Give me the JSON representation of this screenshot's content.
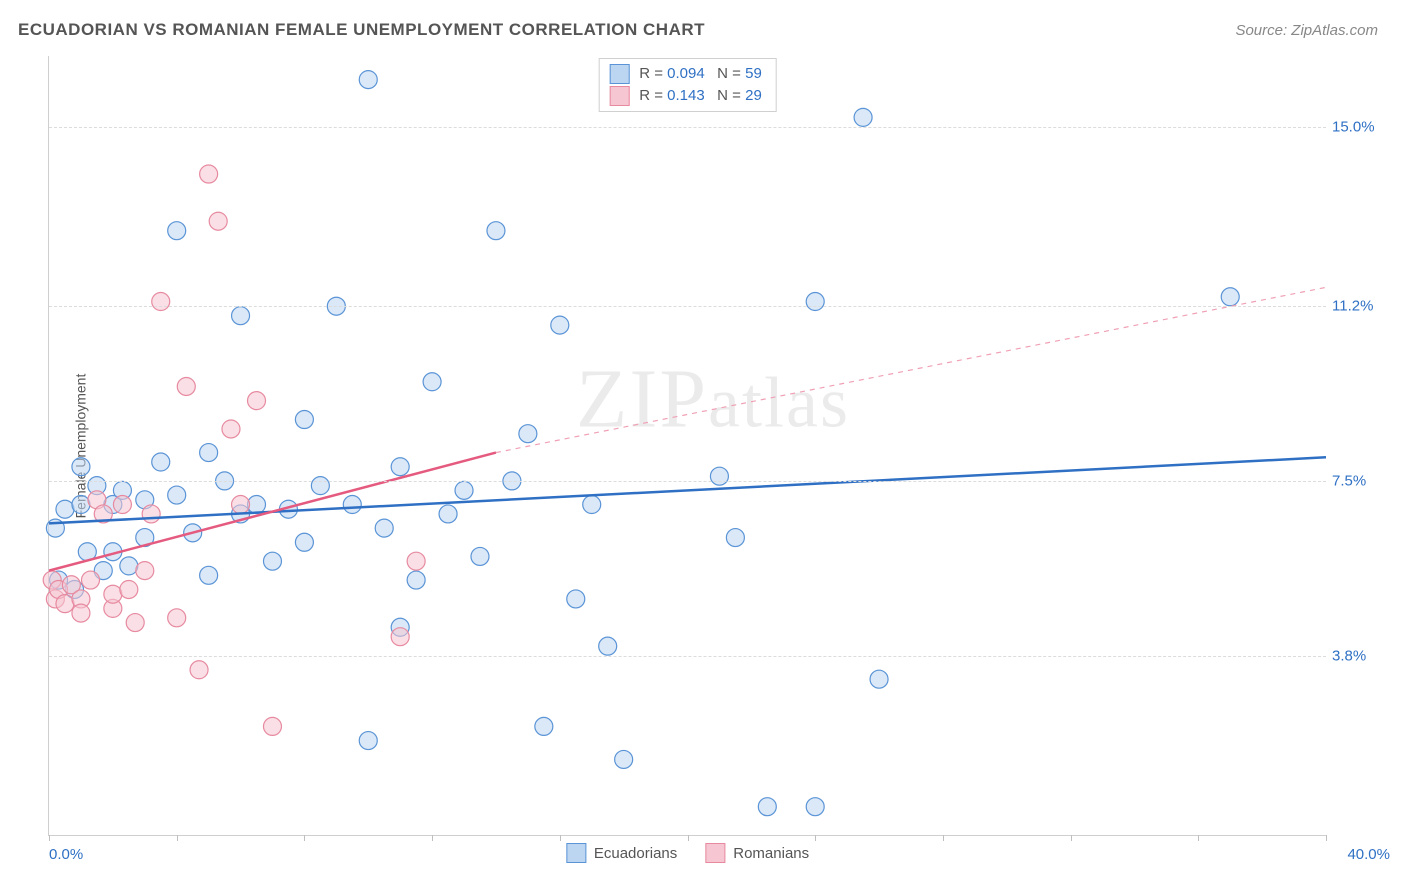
{
  "title": "ECUADORIAN VS ROMANIAN FEMALE UNEMPLOYMENT CORRELATION CHART",
  "source_label": "Source: ZipAtlas.com",
  "ylabel": "Female Unemployment",
  "watermark": "ZIPatlas",
  "chart": {
    "type": "scatter",
    "background_color": "#ffffff",
    "grid_color": "#dcdcdc",
    "axis_color": "#cfcfcf",
    "xlim": [
      0,
      40
    ],
    "ylim": [
      0,
      16.5
    ],
    "x_ticks": [
      0,
      4,
      8,
      12,
      16,
      20,
      24,
      28,
      32,
      36,
      40
    ],
    "x_tick_labels": {
      "left": "0.0%",
      "right": "40.0%",
      "color": "#2f70c4"
    },
    "y_gridlines": [
      {
        "value": 3.8,
        "label": "3.8%",
        "color": "#2f70c4"
      },
      {
        "value": 7.5,
        "label": "7.5%",
        "color": "#2f70c4"
      },
      {
        "value": 11.2,
        "label": "11.2%",
        "color": "#2f70c4"
      },
      {
        "value": 15.0,
        "label": "15.0%",
        "color": "#2f70c4"
      }
    ],
    "marker_radius": 9,
    "marker_opacity": 0.55,
    "marker_stroke_width": 1.2,
    "series": [
      {
        "id": "ecuadorians",
        "label": "Ecuadorians",
        "fill": "#bcd6f2",
        "stroke": "#5a94d6",
        "R": "0.094",
        "N": "59",
        "trend_color": "#2f70c4",
        "trend_width": 2.5,
        "trend_dash": "none",
        "trend": {
          "x1": 0,
          "y1": 6.6,
          "x2": 40,
          "y2": 8.0
        },
        "points": [
          [
            0.2,
            6.5
          ],
          [
            0.3,
            5.4
          ],
          [
            0.5,
            6.9
          ],
          [
            0.8,
            5.2
          ],
          [
            1.0,
            7.8
          ],
          [
            1.0,
            7.0
          ],
          [
            1.2,
            6.0
          ],
          [
            1.5,
            7.4
          ],
          [
            1.7,
            5.6
          ],
          [
            2.0,
            7.0
          ],
          [
            2.0,
            6.0
          ],
          [
            2.3,
            7.3
          ],
          [
            2.5,
            5.7
          ],
          [
            3.0,
            7.1
          ],
          [
            3.0,
            6.3
          ],
          [
            3.5,
            7.9
          ],
          [
            4.0,
            12.8
          ],
          [
            4.0,
            7.2
          ],
          [
            4.5,
            6.4
          ],
          [
            5.0,
            8.1
          ],
          [
            5.0,
            5.5
          ],
          [
            5.5,
            7.5
          ],
          [
            6.0,
            11.0
          ],
          [
            6.0,
            6.8
          ],
          [
            6.5,
            7.0
          ],
          [
            7.0,
            5.8
          ],
          [
            7.5,
            6.9
          ],
          [
            8.0,
            8.8
          ],
          [
            8.0,
            6.2
          ],
          [
            8.5,
            7.4
          ],
          [
            9.0,
            11.2
          ],
          [
            9.5,
            7.0
          ],
          [
            10.0,
            16.0
          ],
          [
            10.0,
            2.0
          ],
          [
            10.5,
            6.5
          ],
          [
            11.0,
            7.8
          ],
          [
            11.0,
            4.4
          ],
          [
            11.5,
            5.4
          ],
          [
            12.0,
            9.6
          ],
          [
            12.5,
            6.8
          ],
          [
            13.0,
            7.3
          ],
          [
            13.5,
            5.9
          ],
          [
            14.0,
            12.8
          ],
          [
            14.5,
            7.5
          ],
          [
            15.0,
            8.5
          ],
          [
            15.5,
            2.3
          ],
          [
            16.0,
            10.8
          ],
          [
            16.5,
            5.0
          ],
          [
            17.0,
            7.0
          ],
          [
            17.5,
            4.0
          ],
          [
            18.0,
            1.6
          ],
          [
            21.0,
            7.6
          ],
          [
            21.5,
            6.3
          ],
          [
            22.5,
            0.6
          ],
          [
            24.0,
            11.3
          ],
          [
            24.0,
            0.6
          ],
          [
            25.5,
            15.2
          ],
          [
            26.0,
            3.3
          ],
          [
            37.0,
            11.4
          ]
        ]
      },
      {
        "id": "romanians",
        "label": "Romanians",
        "fill": "#f6c7d2",
        "stroke": "#e78aa0",
        "R": "0.143",
        "N": "29",
        "trend_color": "#e55a7f",
        "trend_width": 2.5,
        "trend_dash": "none",
        "trend": {
          "x1": 0,
          "y1": 5.6,
          "x2": 14,
          "y2": 8.1
        },
        "trend_ext_color": "#f0a0b5",
        "trend_ext_dash": "5,5",
        "trend_ext": {
          "x1": 14,
          "y1": 8.1,
          "x2": 40,
          "y2": 11.6
        },
        "points": [
          [
            0.1,
            5.4
          ],
          [
            0.2,
            5.0
          ],
          [
            0.3,
            5.2
          ],
          [
            0.5,
            4.9
          ],
          [
            0.7,
            5.3
          ],
          [
            1.0,
            5.0
          ],
          [
            1.0,
            4.7
          ],
          [
            1.3,
            5.4
          ],
          [
            1.5,
            7.1
          ],
          [
            1.7,
            6.8
          ],
          [
            2.0,
            4.8
          ],
          [
            2.0,
            5.1
          ],
          [
            2.3,
            7.0
          ],
          [
            2.5,
            5.2
          ],
          [
            2.7,
            4.5
          ],
          [
            3.0,
            5.6
          ],
          [
            3.2,
            6.8
          ],
          [
            3.5,
            11.3
          ],
          [
            4.0,
            4.6
          ],
          [
            4.3,
            9.5
          ],
          [
            4.7,
            3.5
          ],
          [
            5.0,
            14.0
          ],
          [
            5.3,
            13.0
          ],
          [
            5.7,
            8.6
          ],
          [
            6.0,
            7.0
          ],
          [
            6.5,
            9.2
          ],
          [
            7.0,
            2.3
          ],
          [
            11.0,
            4.2
          ],
          [
            11.5,
            5.8
          ]
        ]
      }
    ],
    "legend_top": {
      "rows": [
        {
          "swatch_fill": "#bcd6f2",
          "swatch_stroke": "#5a94d6",
          "r_label": "R =",
          "r_val": "0.094",
          "n_label": "N =",
          "n_val": "59"
        },
        {
          "swatch_fill": "#f6c7d2",
          "swatch_stroke": "#e78aa0",
          "r_label": "R =",
          "r_val": " 0.143",
          "n_label": "N =",
          "n_val": "29"
        }
      ]
    },
    "legend_bottom": [
      {
        "swatch_fill": "#bcd6f2",
        "swatch_stroke": "#5a94d6",
        "label": "Ecuadorians"
      },
      {
        "swatch_fill": "#f6c7d2",
        "swatch_stroke": "#e78aa0",
        "label": "Romanians"
      }
    ]
  }
}
